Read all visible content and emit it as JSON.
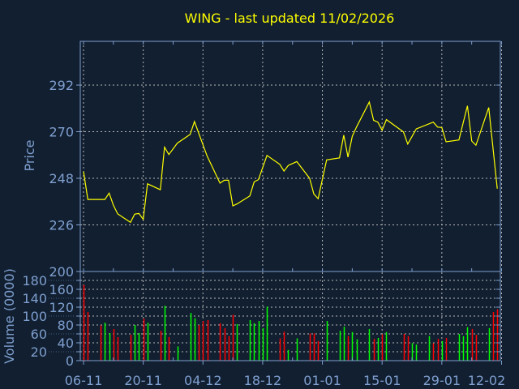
{
  "chart_data": [
    {
      "type": "line",
      "title": "WING - last updated 11/02/2026",
      "ylabel": "Price",
      "xlabel": "",
      "ylim": [
        204,
        313
      ],
      "yticks": [
        292,
        270,
        248,
        226
      ],
      "xticks": [
        "06-11",
        "20-11",
        "04-12",
        "18-12",
        "01-01",
        "15-01",
        "29-01",
        "12-02"
      ],
      "grid": true,
      "line_color": "#ffff00",
      "x": [
        "2025-11-06",
        "2025-11-07",
        "2025-11-11",
        "2025-11-12",
        "2025-11-13",
        "2025-11-14",
        "2025-11-17",
        "2025-11-18",
        "2025-11-19",
        "2025-11-20",
        "2025-11-21",
        "2025-11-24",
        "2025-11-25",
        "2025-11-26",
        "2025-11-28",
        "2025-12-01",
        "2025-12-02",
        "2025-12-05",
        "2025-12-08",
        "2025-12-09",
        "2025-12-10",
        "2025-12-11",
        "2025-12-12",
        "2025-12-15",
        "2025-12-16",
        "2025-12-17",
        "2025-12-19",
        "2025-12-22",
        "2025-12-23",
        "2025-12-24",
        "2025-12-26",
        "2025-12-29",
        "2025-12-30",
        "2025-12-31",
        "2026-01-02",
        "2026-01-05",
        "2026-01-06",
        "2026-01-07",
        "2026-01-08",
        "2026-01-09",
        "2026-01-12",
        "2026-01-13",
        "2026-01-14",
        "2026-01-15",
        "2026-01-16",
        "2026-01-20",
        "2026-01-21",
        "2026-01-23",
        "2026-01-27",
        "2026-01-28",
        "2026-01-29",
        "2026-01-30",
        "2026-02-02",
        "2026-02-04",
        "2026-02-05",
        "2026-02-06",
        "2026-02-09",
        "2026-02-11"
      ],
      "y": [
        251.2,
        238.0,
        238.0,
        241.0,
        235.3,
        231.2,
        227.2,
        231.1,
        231.4,
        228.6,
        245.4,
        242.6,
        262.7,
        259.2,
        264.6,
        268.7,
        274.8,
        258.4,
        245.7,
        247.1,
        247.1,
        235.0,
        235.9,
        239.7,
        246.3,
        247.4,
        258.8,
        254.6,
        251.4,
        254.1,
        255.9,
        248.0,
        240.6,
        238.4,
        256.7,
        257.6,
        268.4,
        258.0,
        267.8,
        272.2,
        284.0,
        275.4,
        274.5,
        270.7,
        275.7,
        269.9,
        264.2,
        271.3,
        274.5,
        272.2,
        272.0,
        265.2,
        266.1,
        282.2,
        265.6,
        263.6,
        281.4,
        243.1
      ]
    },
    {
      "type": "bar",
      "ylabel": "Volume (0000)",
      "ylim": [
        0,
        200
      ],
      "yticks": [
        0,
        20,
        40,
        60,
        80,
        100,
        120,
        140,
        160,
        180,
        200
      ],
      "grid": true,
      "colors": {
        "up": "#00ff00",
        "down": "#ff0000"
      },
      "x": [
        "2025-11-06",
        "2025-11-07",
        "2025-11-10",
        "2025-11-11",
        "2025-11-12",
        "2025-11-13",
        "2025-11-14",
        "2025-11-17",
        "2025-11-18",
        "2025-11-19",
        "2025-11-20",
        "2025-11-21",
        "2025-11-24",
        "2025-11-25",
        "2025-11-26",
        "2025-11-28",
        "2025-12-01",
        "2025-12-02",
        "2025-12-03",
        "2025-12-04",
        "2025-12-05",
        "2025-12-08",
        "2025-12-09",
        "2025-12-10",
        "2025-12-11",
        "2025-12-12",
        "2025-12-15",
        "2025-12-16",
        "2025-12-17",
        "2025-12-18",
        "2025-12-19",
        "2025-12-22",
        "2025-12-23",
        "2025-12-24",
        "2025-12-26",
        "2025-12-29",
        "2025-12-30",
        "2025-12-31",
        "2026-01-02",
        "2026-01-05",
        "2026-01-06",
        "2026-01-07",
        "2026-01-08",
        "2026-01-09",
        "2026-01-12",
        "2026-01-13",
        "2026-01-14",
        "2026-01-15",
        "2026-01-16",
        "2026-01-20",
        "2026-01-21",
        "2026-01-22",
        "2026-01-23",
        "2026-01-26",
        "2026-01-27",
        "2026-01-28",
        "2026-01-29",
        "2026-01-30",
        "2026-02-02",
        "2026-02-03",
        "2026-02-04",
        "2026-02-05",
        "2026-02-06",
        "2026-02-09",
        "2026-02-10",
        "2026-02-11"
      ],
      "values": [
        170,
        109,
        79,
        85,
        62,
        71,
        53,
        58,
        80,
        62,
        94,
        85,
        67,
        123,
        53,
        32,
        107,
        95,
        80,
        89,
        91,
        84,
        73,
        55,
        103,
        82,
        91,
        84,
        89,
        73,
        121,
        50,
        65,
        24,
        50,
        61,
        61,
        44,
        89,
        67,
        76,
        55,
        64,
        48,
        71,
        49,
        51,
        59,
        64,
        60,
        55,
        39,
        36,
        55,
        39,
        49,
        44,
        51,
        60,
        55,
        75,
        71,
        58,
        73,
        109,
        115
      ],
      "direction": [
        "down",
        "down",
        "down",
        "up",
        "up",
        "down",
        "down",
        "down",
        "up",
        "up",
        "down",
        "up",
        "down",
        "up",
        "down",
        "up",
        "up",
        "up",
        "down",
        "down",
        "down",
        "down",
        "down",
        "down",
        "down",
        "up",
        "up",
        "up",
        "up",
        "up",
        "up",
        "down",
        "down",
        "up",
        "up",
        "down",
        "down",
        "down",
        "up",
        "up",
        "up",
        "down",
        "up",
        "up",
        "up",
        "down",
        "up",
        "down",
        "up",
        "down",
        "down",
        "up",
        "up",
        "up",
        "down",
        "down",
        "up",
        "down",
        "up",
        "up",
        "up",
        "down",
        "down",
        "up",
        "down",
        "down"
      ]
    }
  ]
}
